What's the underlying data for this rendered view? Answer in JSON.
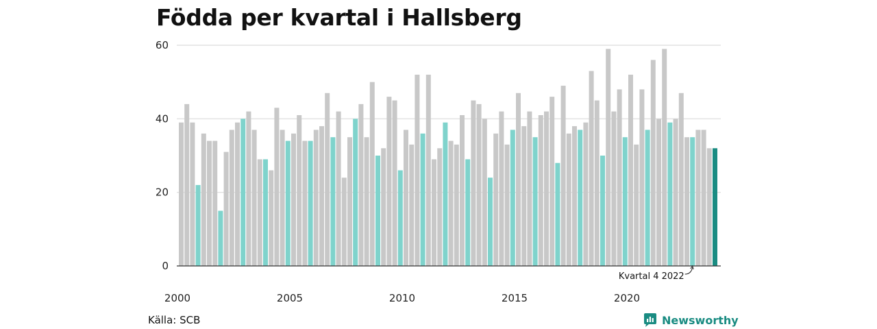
{
  "header": {
    "title": "Födda per kvartal i Hallsberg"
  },
  "footer": {
    "source": "Källa: SCB",
    "brand": "Newsworthy",
    "brand_icon": "newsworthy-logo-icon"
  },
  "colors": {
    "regular": "#c8c8c8",
    "q4": "#7fd3cc",
    "highlight": "#1a8c82",
    "grid": "#dcdcdc",
    "axis": "#333333"
  },
  "chart_data": {
    "type": "bar",
    "title": "Födda per kvartal i Hallsberg",
    "xlabel": "",
    "ylabel": "",
    "ylim": [
      0,
      60
    ],
    "yticks": [
      0,
      20,
      40,
      60
    ],
    "xticks": [
      "2000",
      "2005",
      "2010",
      "2015",
      "2020"
    ],
    "grid": true,
    "start_year": 2000,
    "annotation": {
      "text": "Kvartal 4 2022",
      "year": 2022,
      "quarter": 4
    },
    "values": [
      39,
      44,
      39,
      22,
      36,
      34,
      34,
      15,
      31,
      37,
      39,
      40,
      42,
      37,
      29,
      29,
      26,
      43,
      37,
      34,
      36,
      41,
      34,
      34,
      37,
      38,
      47,
      35,
      42,
      24,
      35,
      40,
      44,
      35,
      50,
      30,
      32,
      46,
      45,
      26,
      37,
      33,
      52,
      36,
      52,
      29,
      32,
      39,
      34,
      33,
      41,
      29,
      45,
      44,
      40,
      24,
      36,
      42,
      33,
      37,
      47,
      38,
      42,
      35,
      41,
      42,
      46,
      28,
      49,
      36,
      38,
      37,
      39,
      53,
      45,
      30,
      59,
      42,
      48,
      35,
      52,
      33,
      48,
      37,
      56,
      40,
      59,
      39,
      40,
      47,
      35,
      35,
      37,
      37,
      32,
      32
    ]
  }
}
